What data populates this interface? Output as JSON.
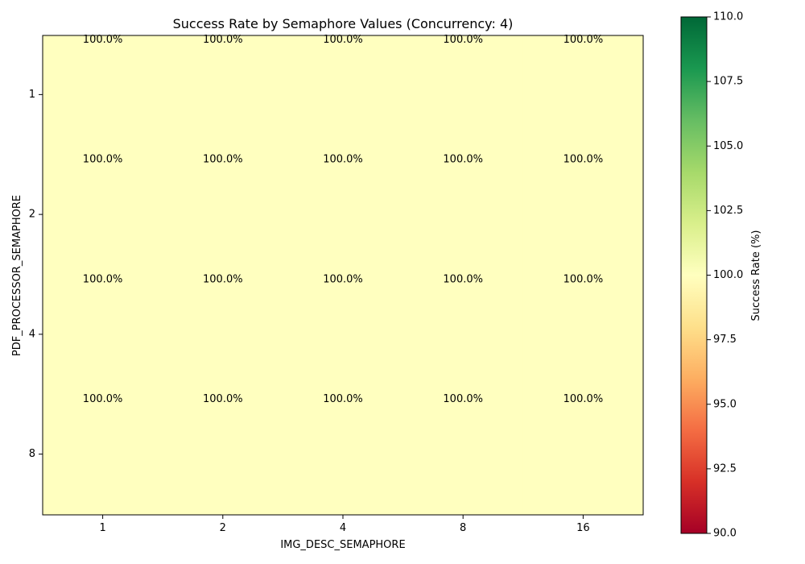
{
  "chart_data": {
    "type": "heatmap",
    "title": "Success Rate by Semaphore Values (Concurrency: 4)",
    "xlabel": "IMG_DESC_SEMAPHORE",
    "ylabel": "PDF_PROCESSOR_SEMAPHORE",
    "x_categories": [
      "1",
      "2",
      "4",
      "8",
      "16"
    ],
    "y_categories": [
      "1",
      "2",
      "4",
      "8"
    ],
    "values": [
      [
        100.0,
        100.0,
        100.0,
        100.0,
        100.0
      ],
      [
        100.0,
        100.0,
        100.0,
        100.0,
        100.0
      ],
      [
        100.0,
        100.0,
        100.0,
        100.0,
        100.0
      ],
      [
        100.0,
        100.0,
        100.0,
        100.0,
        100.0
      ]
    ],
    "cell_labels": [
      [
        "100.0%",
        "100.0%",
        "100.0%",
        "100.0%",
        "100.0%"
      ],
      [
        "100.0%",
        "100.0%",
        "100.0%",
        "100.0%",
        "100.0%"
      ],
      [
        "100.0%",
        "100.0%",
        "100.0%",
        "100.0%",
        "100.0%"
      ],
      [
        "100.0%",
        "100.0%",
        "100.0%",
        "100.0%",
        "100.0%"
      ]
    ],
    "colorbar": {
      "label": "Success Rate (%)",
      "range": [
        90.0,
        110.0
      ],
      "ticks": [
        "90.0",
        "92.5",
        "95.0",
        "97.5",
        "100.0",
        "102.5",
        "105.0",
        "107.5",
        "110.0"
      ],
      "colormap": "RdYlGn",
      "colors": [
        "#a50026",
        "#d73027",
        "#f46d43",
        "#fdae61",
        "#fee08b",
        "#ffffbf",
        "#d9ef8b",
        "#a6d96a",
        "#66bd63",
        "#1a9850",
        "#006837"
      ]
    }
  }
}
